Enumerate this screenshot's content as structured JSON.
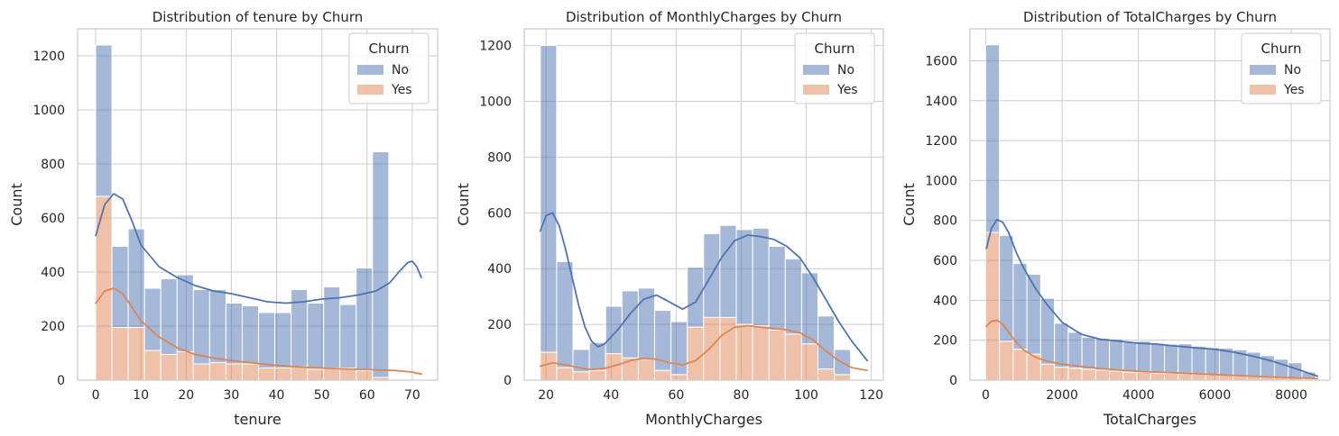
{
  "chart_data": [
    {
      "type": "histogram",
      "title": "Distribution of tenure by Churn",
      "xlabel": "tenure",
      "ylabel": "Count",
      "xlim": [
        -4,
        75.6
      ],
      "ylim": [
        0,
        1300
      ],
      "xticks": [
        0,
        10,
        20,
        30,
        40,
        50,
        60,
        70
      ],
      "yticks": [
        0,
        200,
        400,
        600,
        800,
        1000,
        1200
      ],
      "grid": true,
      "multiple": "stack",
      "legend": {
        "title": "Churn",
        "placement": "top-right",
        "entries": [
          "No",
          "Yes"
        ]
      },
      "bin_edges": [
        0,
        3.6,
        7.2,
        10.8,
        14.4,
        18,
        21.6,
        25.2,
        28.8,
        32.4,
        36,
        39.6,
        43.2,
        46.8,
        50.4,
        54,
        57.6,
        61.2,
        64.8,
        68.4,
        72
      ],
      "series": [
        {
          "name": "No",
          "color": "#4c72b0",
          "values": [
            560,
            300,
            365,
            230,
            280,
            285,
            275,
            270,
            225,
            215,
            205,
            205,
            285,
            245,
            300,
            235,
            380,
            835,
            0,
            0
          ]
        },
        {
          "name": "Yes",
          "color": "#dd8452",
          "values": [
            680,
            195,
            195,
            110,
            95,
            105,
            60,
            65,
            60,
            60,
            45,
            45,
            50,
            40,
            45,
            45,
            35,
            10,
            0,
            0
          ]
        }
      ],
      "kde": [
        {
          "series": "No",
          "color": "#4c72b0",
          "x": [
            0,
            2,
            4,
            6,
            8,
            10,
            14,
            18,
            22,
            26,
            30,
            34,
            38,
            42,
            46,
            50,
            54,
            58,
            62,
            65,
            67,
            69,
            70,
            71,
            72
          ],
          "y": [
            535,
            650,
            690,
            670,
            590,
            500,
            420,
            380,
            350,
            330,
            320,
            305,
            290,
            285,
            290,
            300,
            305,
            315,
            330,
            360,
            400,
            435,
            440,
            420,
            380
          ]
        },
        {
          "series": "Yes",
          "color": "#dd8452",
          "x": [
            0,
            2,
            4,
            6,
            8,
            10,
            14,
            18,
            22,
            26,
            30,
            34,
            38,
            42,
            46,
            50,
            54,
            58,
            62,
            66,
            70,
            72
          ],
          "y": [
            285,
            330,
            340,
            320,
            270,
            220,
            160,
            120,
            95,
            82,
            72,
            65,
            58,
            52,
            48,
            45,
            42,
            40,
            38,
            36,
            30,
            22
          ]
        }
      ]
    },
    {
      "type": "histogram",
      "title": "Distribution of MonthlyCharges by Churn",
      "xlabel": "MonthlyCharges",
      "ylabel": "Count",
      "xlim": [
        13.3,
        123.7
      ],
      "ylim": [
        0,
        1260
      ],
      "xticks": [
        20,
        40,
        60,
        80,
        100,
        120
      ],
      "yticks": [
        0,
        200,
        400,
        600,
        800,
        1000,
        1200
      ],
      "grid": true,
      "multiple": "stack",
      "legend": {
        "title": "Churn",
        "placement": "top-right",
        "entries": [
          "No",
          "Yes"
        ]
      },
      "bin_edges": [
        18.25,
        23.27,
        28.29,
        33.31,
        38.33,
        43.35,
        48.37,
        53.39,
        58.41,
        63.43,
        68.45,
        73.47,
        78.49,
        83.51,
        88.53,
        93.55,
        98.57,
        103.59,
        108.61,
        113.63,
        118.75
      ],
      "series": [
        {
          "name": "No",
          "color": "#4c72b0",
          "values": [
            1100,
            380,
            80,
            100,
            170,
            240,
            255,
            215,
            190,
            215,
            300,
            330,
            340,
            350,
            300,
            270,
            255,
            190,
            90,
            0
          ]
        },
        {
          "name": "Yes",
          "color": "#dd8452",
          "values": [
            100,
            45,
            30,
            35,
            95,
            80,
            75,
            35,
            20,
            190,
            225,
            225,
            200,
            195,
            180,
            165,
            130,
            40,
            20,
            0
          ]
        }
      ],
      "kde": [
        {
          "series": "No",
          "color": "#4c72b0",
          "x": [
            18.25,
            20,
            22,
            24,
            26,
            28,
            30,
            32,
            34,
            36,
            38,
            42,
            46,
            50,
            54,
            58,
            62,
            66,
            70,
            74,
            78,
            82,
            86,
            90,
            94,
            98,
            102,
            106,
            110,
            114,
            118.75
          ],
          "y": [
            535,
            590,
            600,
            555,
            470,
            370,
            270,
            190,
            140,
            120,
            130,
            180,
            240,
            290,
            305,
            280,
            255,
            280,
            360,
            440,
            500,
            520,
            515,
            505,
            480,
            440,
            370,
            290,
            210,
            140,
            70
          ]
        },
        {
          "series": "Yes",
          "color": "#dd8452",
          "x": [
            18.25,
            22,
            26,
            30,
            34,
            38,
            42,
            46,
            50,
            54,
            58,
            62,
            66,
            70,
            74,
            78,
            82,
            86,
            90,
            94,
            98,
            102,
            106,
            110,
            114,
            118.75
          ],
          "y": [
            50,
            62,
            55,
            45,
            38,
            42,
            55,
            70,
            78,
            75,
            62,
            55,
            70,
            110,
            160,
            190,
            195,
            190,
            185,
            180,
            170,
            145,
            105,
            70,
            45,
            35
          ]
        }
      ]
    },
    {
      "type": "histogram",
      "title": "Distribution of TotalCharges by Churn",
      "xlabel": "TotalCharges",
      "ylabel": "Count",
      "xlim": [
        -412,
        9014
      ],
      "ylim": [
        0,
        1760
      ],
      "xticks": [
        0,
        2000,
        4000,
        6000,
        8000
      ],
      "yticks": [
        0,
        200,
        400,
        600,
        800,
        1000,
        1200,
        1400,
        1600
      ],
      "grid": true,
      "multiple": "stack",
      "legend": {
        "title": "Churn",
        "placement": "top-right",
        "entries": [
          "No",
          "Yes"
        ]
      },
      "bin_edges": [
        0,
        360,
        720,
        1080,
        1440,
        1800,
        2160,
        2520,
        2880,
        3240,
        3600,
        3960,
        4320,
        4680,
        5040,
        5400,
        5760,
        6120,
        6480,
        6840,
        7200,
        7560,
        7920,
        8280,
        8640
      ],
      "series": [
        {
          "name": "No",
          "color": "#4c72b0",
          "values": [
            940,
            530,
            430,
            400,
            330,
            220,
            180,
            160,
            160,
            160,
            150,
            155,
            150,
            145,
            150,
            140,
            135,
            135,
            130,
            120,
            105,
            90,
            75,
            35
          ]
        },
        {
          "name": "Yes",
          "color": "#dd8452",
          "values": [
            740,
            195,
            155,
            130,
            80,
            65,
            60,
            55,
            50,
            45,
            40,
            40,
            35,
            35,
            32,
            30,
            28,
            25,
            22,
            20,
            18,
            15,
            12,
            5
          ]
        }
      ],
      "kde": [
        {
          "series": "No",
          "color": "#4c72b0",
          "x": [
            18.8,
            150,
            300,
            450,
            600,
            800,
            1000,
            1300,
            1600,
            2000,
            2500,
            3000,
            3500,
            4000,
            4500,
            5000,
            5500,
            6000,
            6500,
            7000,
            7500,
            8000,
            8684.8
          ],
          "y": [
            660,
            760,
            805,
            790,
            740,
            640,
            560,
            460,
            380,
            290,
            230,
            205,
            195,
            185,
            180,
            170,
            162,
            155,
            140,
            120,
            95,
            65,
            20
          ]
        },
        {
          "series": "Yes",
          "color": "#dd8452",
          "x": [
            18.8,
            150,
            300,
            450,
            600,
            800,
            1000,
            1300,
            1600,
            2000,
            2500,
            3000,
            3500,
            4000,
            4500,
            5000,
            5500,
            6000,
            6500,
            7000,
            7500,
            8000,
            8684.8
          ],
          "y": [
            270,
            295,
            300,
            280,
            240,
            190,
            150,
            115,
            95,
            80,
            68,
            58,
            50,
            44,
            40,
            36,
            32,
            28,
            24,
            20,
            16,
            12,
            8
          ]
        }
      ]
    }
  ]
}
